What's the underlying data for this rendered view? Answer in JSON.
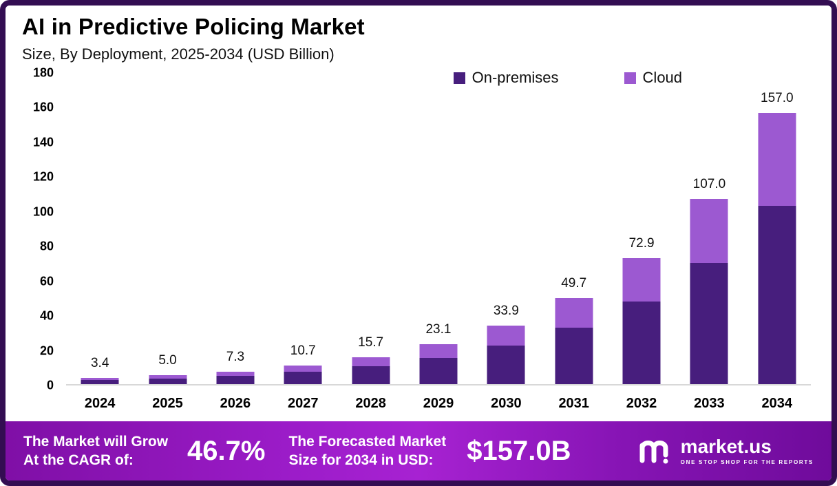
{
  "header": {
    "title": "AI in Predictive Policing Market",
    "subtitle": "Size, By Deployment, 2025-2034 (USD Billion)"
  },
  "chart_data": {
    "type": "bar",
    "stacked": true,
    "title": "AI in Predictive Policing Market",
    "subtitle": "Size, By Deployment, 2025-2034 (USD Billion)",
    "unit": "USD Billion",
    "categories": [
      "2024",
      "2025",
      "2026",
      "2027",
      "2028",
      "2029",
      "2030",
      "2031",
      "2032",
      "2033",
      "2034"
    ],
    "series": [
      {
        "name": "On-premises",
        "color": "#471e7d",
        "values": [
          2.2,
          3.3,
          4.8,
          7.0,
          10.3,
          15.2,
          22.2,
          32.6,
          47.8,
          70.2,
          103.0
        ]
      },
      {
        "name": "Cloud",
        "color": "#9c59d1",
        "values": [
          1.2,
          1.7,
          2.5,
          3.7,
          5.4,
          7.9,
          11.7,
          17.1,
          25.1,
          36.8,
          54.0
        ]
      }
    ],
    "totals": [
      3.4,
      5.0,
      7.3,
      10.7,
      15.7,
      23.1,
      33.9,
      49.7,
      72.9,
      107.0,
      157.0
    ],
    "total_labels": [
      "3.4",
      "5.0",
      "7.3",
      "10.7",
      "15.7",
      "23.1",
      "33.9",
      "49.7",
      "72.9",
      "107.0",
      "157.0"
    ],
    "ylim": [
      0,
      180
    ],
    "yticks": [
      0,
      20,
      40,
      60,
      80,
      100,
      120,
      140,
      160,
      180
    ],
    "grid": false,
    "legend_position": "top-right"
  },
  "footer": {
    "cagr_label_line1": "The Market will Grow",
    "cagr_label_line2": "At the CAGR of:",
    "cagr_value": "46.7%",
    "forecast_label_line1": "The Forecasted Market",
    "forecast_label_line2": "Size for 2034 in USD:",
    "forecast_value": "$157.0B",
    "brand_name": "market.us",
    "brand_tagline": "ONE STOP SHOP FOR THE REPORTS"
  },
  "colors": {
    "frame_color": "#330d52",
    "on_premises": "#471e7d",
    "cloud": "#9c59d1",
    "footer_purple": "#8614b4",
    "axis_line": "#d8d8d8"
  }
}
